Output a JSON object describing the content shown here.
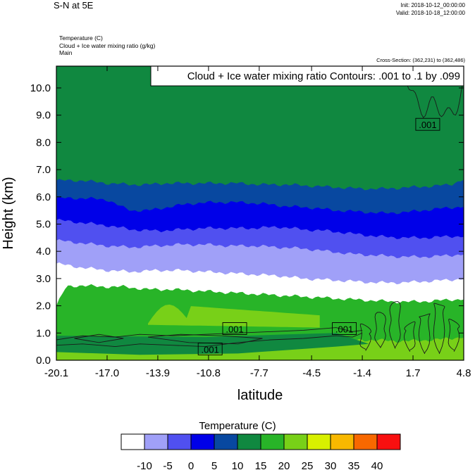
{
  "header": {
    "title": "S-N at 5E",
    "init": "Init: 2018-10-12_00:00:00",
    "valid": "Valid: 2018-10-18_12:00:00",
    "field1": "Temperature   (C)",
    "field2": "Cloud + Ice water mixing ratio   (g/kg)",
    "field3": "Main",
    "cross_section": "Cross-Section: (362,231) to (362,486)"
  },
  "chart_data": {
    "type": "contour",
    "title": "S-N at 5E",
    "contour_note": "Cloud + Ice water mixing ratio Contours: .001 to .1 by .099",
    "xlabel": "latitude",
    "ylabel": "Height (km)",
    "x_ticks": [
      "-20.1",
      "-17.0",
      "-13.9",
      "-10.8",
      "-7.7",
      "-4.5",
      "-1.4",
      "1.7",
      "4.8"
    ],
    "y_ticks": [
      "0.0",
      "1.0",
      "2.0",
      "3.0",
      "4.0",
      "5.0",
      "6.0",
      "7.0",
      "8.0",
      "9.0",
      "10.0"
    ],
    "xlim": [
      -20.1,
      4.8
    ],
    "ylim": [
      0,
      10.8
    ],
    "contour_labels": [
      {
        "text": ".001",
        "x": -9.2,
        "y": 1.15
      },
      {
        "text": ".001",
        "x": -10.7,
        "y": 0.4
      },
      {
        "text": ".001",
        "x": -2.5,
        "y": 1.15
      },
      {
        "text": ".001",
        "x": 2.6,
        "y": 8.65
      }
    ],
    "filled_levels": [
      {
        "x": [
          -20.1,
          -18.5,
          -17,
          -15.5,
          -14.5,
          -13.5,
          -12,
          -10.5,
          -9,
          -7.5,
          -6,
          -4.5,
          -3,
          -1.5,
          0,
          1.5,
          3,
          4,
          4.8
        ],
        "y": [
          6.6,
          6.6,
          6.5,
          6.45,
          6.45,
          6.5,
          6.5,
          6.5,
          6.5,
          6.45,
          6.45,
          6.4,
          6.35,
          6.3,
          6.3,
          6.35,
          6.4,
          6.45,
          6.65
        ]
      },
      {
        "x": [
          -20.1,
          -18.5,
          -17,
          -16,
          -15.5,
          -14.5,
          -13.5,
          -12,
          -10.5,
          -9,
          -7.5,
          -6,
          -4.5,
          -3,
          -1.5,
          0,
          1.5,
          3,
          4,
          4.8
        ],
        "y": [
          5.95,
          5.95,
          5.9,
          5.6,
          5.5,
          5.5,
          5.6,
          5.75,
          5.8,
          5.8,
          5.75,
          5.65,
          5.6,
          5.5,
          5.45,
          5.4,
          5.45,
          5.55,
          5.6,
          5.65
        ]
      },
      {
        "x": [
          -20.1,
          -18.5,
          -17,
          -15.5,
          -14,
          -12.5,
          -11,
          -9.5,
          -8,
          -6.5,
          -5,
          -3.5,
          -2,
          -0.5,
          1,
          2.5,
          4,
          4.8
        ],
        "y": [
          5.15,
          5.05,
          4.95,
          4.8,
          4.75,
          4.8,
          4.85,
          4.85,
          4.85,
          4.9,
          4.8,
          4.75,
          4.65,
          4.55,
          4.5,
          4.5,
          4.55,
          4.55
        ]
      },
      {
        "x": [
          -20.1,
          -18.5,
          -17,
          -15.5,
          -14,
          -12.5,
          -11,
          -9.5,
          -8,
          -6.5,
          -5,
          -3.5,
          -2,
          -0.5,
          1,
          2.5,
          4,
          4.8
        ],
        "y": [
          4.4,
          4.3,
          4.2,
          4.15,
          4.2,
          4.25,
          4.25,
          4.2,
          4.2,
          4.15,
          4.1,
          4.0,
          3.9,
          3.85,
          3.8,
          3.8,
          3.85,
          3.9
        ]
      },
      {
        "x": [
          -20.1,
          -18.5,
          -17,
          -15.5,
          -14,
          -12.5,
          -11,
          -9.5,
          -8,
          -6.5,
          -5,
          -3.5,
          -2,
          -0.5,
          1,
          2.5,
          4,
          4.8
        ],
        "y": [
          3.55,
          3.4,
          3.3,
          3.25,
          3.3,
          3.3,
          3.25,
          3.2,
          3.15,
          3.1,
          3.0,
          2.95,
          2.9,
          2.85,
          2.85,
          2.9,
          2.95,
          3.0
        ]
      },
      {
        "x": [
          -20.1,
          -19.5,
          -18.5,
          -17.5,
          -16,
          -14.5,
          -13,
          -11.5,
          -10,
          -8.5,
          -7,
          -5.5,
          -4,
          -2.5,
          -1,
          0.5,
          2,
          3.5,
          4.8
        ],
        "y": [
          2.0,
          2.7,
          2.75,
          2.7,
          2.7,
          2.6,
          2.6,
          2.55,
          2.5,
          2.45,
          2.4,
          2.35,
          2.3,
          2.25,
          2.2,
          2.15,
          2.15,
          2.2,
          2.25
        ]
      },
      {
        "shape": "lens",
        "x": [
          -14.5,
          -4
        ],
        "y_top": [
          2.1,
          1.65
        ],
        "y_bottom": [
          1.3,
          1.2
        ]
      },
      {
        "x": [
          -20.1,
          -17,
          -14,
          -11,
          -8,
          -5,
          -3,
          -1,
          1,
          3,
          4.8
        ],
        "y": [
          0.45,
          0.4,
          0.45,
          0.5,
          0.55,
          0.65,
          0.7,
          0.75,
          0.7,
          0.75,
          0.85
        ]
      }
    ],
    "colorbar": {
      "title": "Temperature  (C)",
      "labels": [
        "-10",
        "-5",
        "0",
        "5",
        "10",
        "15",
        "20",
        "25",
        "30",
        "35",
        "40"
      ],
      "colors": [
        "#ffffff",
        "#a0a0f8",
        "#5050f0",
        "#0000e8",
        "#0848a0",
        "#108840",
        "#28b428",
        "#78d018",
        "#d8f000",
        "#f8b800",
        "#f86800",
        "#f81010"
      ]
    }
  }
}
